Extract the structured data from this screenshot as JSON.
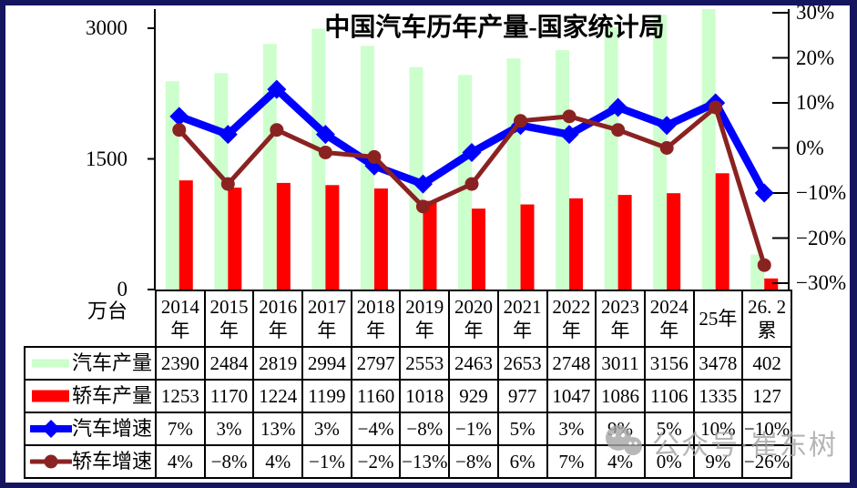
{
  "left_axis": {
    "unit_label": "万台",
    "ticks": [
      {
        "label": "3000",
        "value": 3000
      },
      {
        "label": "1500",
        "value": 1500
      },
      {
        "label": "0",
        "value": 0
      }
    ]
  },
  "right_axis": {
    "ticks": [
      {
        "label": "30%",
        "value": 30
      },
      {
        "label": "20%",
        "value": 20
      },
      {
        "label": "10%",
        "value": 10
      },
      {
        "label": "0%",
        "value": 0
      },
      {
        "label": "−10%",
        "value": -10
      },
      {
        "label": "−20%",
        "value": -20
      },
      {
        "label": "−30%",
        "value": -30
      }
    ]
  },
  "watermark": {
    "icon": "wechat-icon",
    "text": "公众号·崔东树"
  },
  "chart_data": {
    "type": "combo-bar-line",
    "title": "中国汽车历年产量-国家统计局",
    "categories": [
      "2014年",
      "2015年",
      "2016年",
      "2017年",
      "2018年",
      "2019年",
      "2020年",
      "2021年",
      "2022年",
      "2023年",
      "2024年",
      "25年",
      "26. 2累"
    ],
    "categories_lines": [
      [
        "2014",
        "年"
      ],
      [
        "2015",
        "年"
      ],
      [
        "2016",
        "年"
      ],
      [
        "2017",
        "年"
      ],
      [
        "2018",
        "年"
      ],
      [
        "2019",
        "年"
      ],
      [
        "2020",
        "年"
      ],
      [
        "2021",
        "年"
      ],
      [
        "2022",
        "年"
      ],
      [
        "2023",
        "年"
      ],
      [
        "2024",
        "年"
      ],
      [
        "25年"
      ],
      [
        "26. 2",
        "累"
      ]
    ],
    "left_ylim": [
      0,
      3000
    ],
    "right_ylim": [
      -30,
      30
    ],
    "legend_position": "table-left-column",
    "grid": false,
    "series": [
      {
        "name": "汽车产量",
        "type": "bar",
        "axis": "left",
        "color": "#ccffcc",
        "values": [
          2390,
          2484,
          2819,
          2994,
          2797,
          2553,
          2463,
          2653,
          2748,
          3011,
          3156,
          3478,
          402
        ],
        "labels": [
          "2390",
          "2484",
          "2819",
          "2994",
          "2797",
          "2553",
          "2463",
          "2653",
          "2748",
          "3011",
          "3156",
          "3478",
          "402"
        ]
      },
      {
        "name": "轿车产量",
        "type": "bar",
        "axis": "left",
        "color": "#ff0000",
        "values": [
          1253,
          1170,
          1224,
          1199,
          1160,
          1018,
          929,
          977,
          1047,
          1086,
          1106,
          1335,
          127
        ],
        "labels": [
          "1253",
          "1170",
          "1224",
          "1199",
          "1160",
          "1018",
          "929",
          "977",
          "1047",
          "1086",
          "1106",
          "1335",
          "127"
        ]
      },
      {
        "name": "汽车增速",
        "type": "line",
        "axis": "right",
        "color": "#0000ff",
        "marker": "diamond",
        "values": [
          7,
          3,
          13,
          3,
          -4,
          -8,
          -1,
          5,
          3,
          9,
          5,
          10,
          -10
        ],
        "labels": [
          "7%",
          "3%",
          "13%",
          "3%",
          "−4%",
          "−8%",
          "−1%",
          "5%",
          "3%",
          "9%",
          "5%",
          "10%",
          "−10%"
        ]
      },
      {
        "name": "轿车增速",
        "type": "line",
        "axis": "right",
        "color": "#8b2222",
        "marker": "circle",
        "values": [
          4,
          -8,
          4,
          -1,
          -2,
          -13,
          -8,
          6,
          7,
          4,
          0,
          9,
          -26
        ],
        "labels": [
          "4%",
          "−8%",
          "4%",
          "−1%",
          "−2%",
          "−13%",
          "−8%",
          "6%",
          "7%",
          "4%",
          "0%",
          "9%",
          "−26%"
        ]
      }
    ]
  }
}
